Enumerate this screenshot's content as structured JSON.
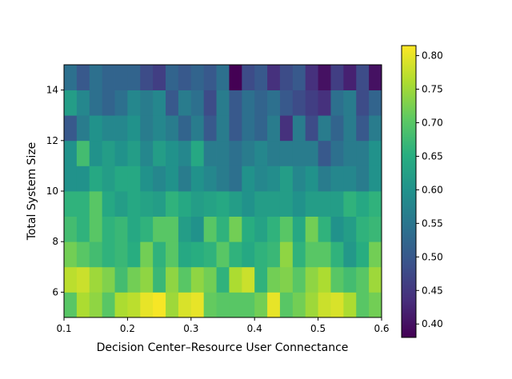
{
  "chart_data": {
    "type": "heatmap",
    "xlabel": "Decision Center–Resource User Connectance",
    "ylabel": "Total System Size",
    "xlim": [
      0.1,
      0.6
    ],
    "ylim": [
      5,
      15
    ],
    "x_ticks": [
      "0.1",
      "0.2",
      "0.3",
      "0.4",
      "0.5",
      "0.6"
    ],
    "y_ticks": [
      "6",
      "8",
      "10",
      "12",
      "14"
    ],
    "colorbar": {
      "min": 0.38,
      "max": 0.815,
      "ticks": [
        "0.40",
        "0.45",
        "0.50",
        "0.55",
        "0.60",
        "0.65",
        "0.70",
        "0.75",
        "0.80"
      ],
      "colormap": "viridis"
    },
    "n_columns": 25,
    "row_y_start": [
      5,
      6,
      7,
      8,
      9,
      10,
      11,
      12,
      13,
      14
    ],
    "row_y_end": [
      6,
      7,
      8,
      9,
      10,
      11,
      12,
      13,
      14,
      15
    ],
    "values": [
      [
        0.7,
        0.76,
        0.74,
        0.7,
        0.76,
        0.77,
        0.8,
        0.81,
        0.75,
        0.79,
        0.8,
        0.71,
        0.7,
        0.7,
        0.7,
        0.72,
        0.8,
        0.7,
        0.72,
        0.75,
        0.78,
        0.79,
        0.76,
        0.7,
        0.72
      ],
      [
        0.77,
        0.78,
        0.75,
        0.73,
        0.68,
        0.72,
        0.74,
        0.67,
        0.74,
        0.7,
        0.74,
        0.72,
        0.66,
        0.76,
        0.78,
        0.66,
        0.72,
        0.73,
        0.7,
        0.74,
        0.76,
        0.7,
        0.68,
        0.7,
        0.75
      ],
      [
        0.72,
        0.7,
        0.68,
        0.66,
        0.67,
        0.65,
        0.72,
        0.66,
        0.7,
        0.64,
        0.65,
        0.66,
        0.7,
        0.66,
        0.64,
        0.66,
        0.67,
        0.74,
        0.66,
        0.7,
        0.7,
        0.66,
        0.61,
        0.65,
        0.72
      ],
      [
        0.68,
        0.66,
        0.7,
        0.66,
        0.67,
        0.64,
        0.66,
        0.7,
        0.7,
        0.62,
        0.6,
        0.7,
        0.66,
        0.72,
        0.65,
        0.63,
        0.66,
        0.7,
        0.64,
        0.72,
        0.66,
        0.6,
        0.62,
        0.66,
        0.67
      ],
      [
        0.66,
        0.66,
        0.7,
        0.64,
        0.62,
        0.64,
        0.63,
        0.62,
        0.66,
        0.64,
        0.62,
        0.63,
        0.64,
        0.62,
        0.6,
        0.62,
        0.62,
        0.62,
        0.6,
        0.62,
        0.62,
        0.62,
        0.66,
        0.64,
        0.66
      ],
      [
        0.6,
        0.6,
        0.64,
        0.62,
        0.64,
        0.64,
        0.6,
        0.58,
        0.6,
        0.56,
        0.6,
        0.58,
        0.56,
        0.54,
        0.6,
        0.58,
        0.59,
        0.62,
        0.58,
        0.6,
        0.56,
        0.58,
        0.58,
        0.56,
        0.6
      ],
      [
        0.6,
        0.68,
        0.6,
        0.62,
        0.6,
        0.62,
        0.58,
        0.62,
        0.6,
        0.58,
        0.64,
        0.56,
        0.56,
        0.54,
        0.56,
        0.58,
        0.56,
        0.56,
        0.56,
        0.56,
        0.5,
        0.54,
        0.56,
        0.56,
        0.6
      ],
      [
        0.5,
        0.56,
        0.6,
        0.58,
        0.58,
        0.6,
        0.56,
        0.58,
        0.56,
        0.52,
        0.56,
        0.5,
        0.56,
        0.5,
        0.54,
        0.52,
        0.56,
        0.44,
        0.56,
        0.48,
        0.56,
        0.52,
        0.56,
        0.5,
        0.56
      ],
      [
        0.62,
        0.58,
        0.54,
        0.52,
        0.54,
        0.58,
        0.56,
        0.58,
        0.5,
        0.56,
        0.54,
        0.48,
        0.56,
        0.5,
        0.54,
        0.52,
        0.54,
        0.5,
        0.48,
        0.46,
        0.44,
        0.54,
        0.56,
        0.48,
        0.52
      ],
      [
        0.54,
        0.5,
        0.54,
        0.52,
        0.52,
        0.52,
        0.48,
        0.46,
        0.52,
        0.5,
        0.52,
        0.5,
        0.54,
        0.38,
        0.48,
        0.5,
        0.44,
        0.48,
        0.5,
        0.44,
        0.4,
        0.46,
        0.42,
        0.48,
        0.4
      ]
    ]
  }
}
